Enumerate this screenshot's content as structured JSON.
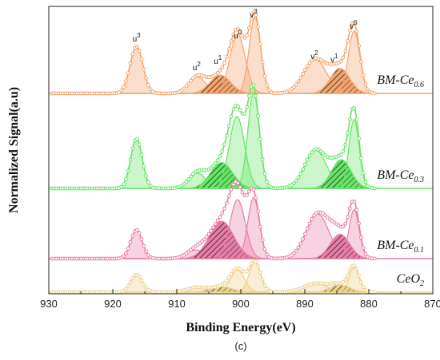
{
  "chart_data": {
    "type": "line",
    "title": "",
    "xlabel": "Binding Energy(eV)",
    "ylabel": "Normalized Signal(a.u)",
    "caption": "(c)",
    "xlim": [
      930,
      870
    ],
    "x_reversed": true,
    "xticks": [
      930,
      920,
      910,
      900,
      890,
      880,
      870
    ],
    "grid": false,
    "series": [
      {
        "name": "BM-Ce0.6",
        "label_main": "BM-Ce",
        "label_sub": "0.6",
        "color": "#f4a46e",
        "hatched_peaks": [
          "u1",
          "v1"
        ],
        "peaks": [
          {
            "id": "u3",
            "label": "u",
            "sub": "3",
            "center": 916.3,
            "height": 0.62,
            "width": 1.0
          },
          {
            "id": "u2",
            "label": "u",
            "sub": "2",
            "center": 906.8,
            "height": 0.22,
            "width": 1.3
          },
          {
            "id": "u1",
            "label": "u",
            "sub": "1",
            "center": 903.2,
            "height": 0.24,
            "width": 1.6
          },
          {
            "id": "u0",
            "label": "u",
            "sub": "0",
            "center": 900.5,
            "height": 0.78,
            "width": 1.2
          },
          {
            "id": "v3",
            "label": "v",
            "sub": "3",
            "center": 897.8,
            "height": 1.0,
            "width": 0.9
          },
          {
            "id": "v2",
            "label": "v",
            "sub": "2",
            "center": 888.4,
            "height": 0.45,
            "width": 1.8
          },
          {
            "id": "v1",
            "label": "v",
            "sub": "1",
            "center": 884.5,
            "height": 0.33,
            "width": 1.5
          },
          {
            "id": "v0",
            "label": "v",
            "sub": "0",
            "center": 882.3,
            "height": 0.82,
            "width": 0.9
          }
        ]
      },
      {
        "name": "BM-Ce0.3",
        "label_main": "BM-Ce",
        "label_sub": "0.3",
        "color": "#66e466",
        "hatched_peaks": [
          "u1",
          "v1"
        ],
        "peaks": [
          {
            "id": "u3",
            "center": 916.3,
            "height": 0.52,
            "width": 0.9
          },
          {
            "id": "u2",
            "center": 906.8,
            "height": 0.16,
            "width": 1.3
          },
          {
            "id": "u1",
            "center": 903.0,
            "height": 0.27,
            "width": 1.7
          },
          {
            "id": "u0",
            "center": 900.6,
            "height": 0.75,
            "width": 1.2
          },
          {
            "id": "v3",
            "center": 898.0,
            "height": 1.0,
            "width": 0.9
          },
          {
            "id": "v2",
            "center": 888.3,
            "height": 0.4,
            "width": 1.7
          },
          {
            "id": "v1",
            "center": 884.3,
            "height": 0.3,
            "width": 1.5
          },
          {
            "id": "v0",
            "center": 882.3,
            "height": 0.72,
            "width": 0.8
          }
        ]
      },
      {
        "name": "BM-Ce0.1",
        "label_main": "BM-Ce",
        "label_sub": "0.1",
        "color": "#e87ea8",
        "hatched_peaks": [
          "u1",
          "v1"
        ],
        "peaks": [
          {
            "id": "u3",
            "center": 916.3,
            "height": 0.4,
            "width": 0.9
          },
          {
            "id": "u2",
            "center": 907.0,
            "height": 0.12,
            "width": 1.4
          },
          {
            "id": "u1",
            "center": 903.0,
            "height": 0.52,
            "width": 1.9
          },
          {
            "id": "u0",
            "center": 900.5,
            "height": 0.82,
            "width": 1.2
          },
          {
            "id": "v3",
            "center": 898.0,
            "height": 0.85,
            "width": 0.9
          },
          {
            "id": "v2",
            "center": 888.0,
            "height": 0.62,
            "width": 1.8
          },
          {
            "id": "v1",
            "center": 884.5,
            "height": 0.34,
            "width": 1.5
          },
          {
            "id": "v0",
            "center": 882.3,
            "height": 0.68,
            "width": 0.8
          }
        ]
      },
      {
        "name": "CeO2",
        "label_main": "CeO",
        "label_sub": "2",
        "color": "#ead18a",
        "hatched_peaks": [
          "u1",
          "v1"
        ],
        "peaks": [
          {
            "id": "u3",
            "center": 916.3,
            "height": 0.58,
            "width": 0.9
          },
          {
            "id": "u2",
            "center": 907.0,
            "height": 0.15,
            "width": 1.4
          },
          {
            "id": "u1",
            "center": 903.0,
            "height": 0.18,
            "width": 1.7
          },
          {
            "id": "u0",
            "center": 900.5,
            "height": 0.72,
            "width": 1.1
          },
          {
            "id": "v3",
            "center": 897.8,
            "height": 1.0,
            "width": 0.9
          },
          {
            "id": "v2",
            "center": 888.3,
            "height": 0.28,
            "width": 1.9
          },
          {
            "id": "v1",
            "center": 884.5,
            "height": 0.24,
            "width": 1.5
          },
          {
            "id": "v0",
            "center": 882.3,
            "height": 0.8,
            "width": 0.8
          }
        ]
      }
    ]
  }
}
